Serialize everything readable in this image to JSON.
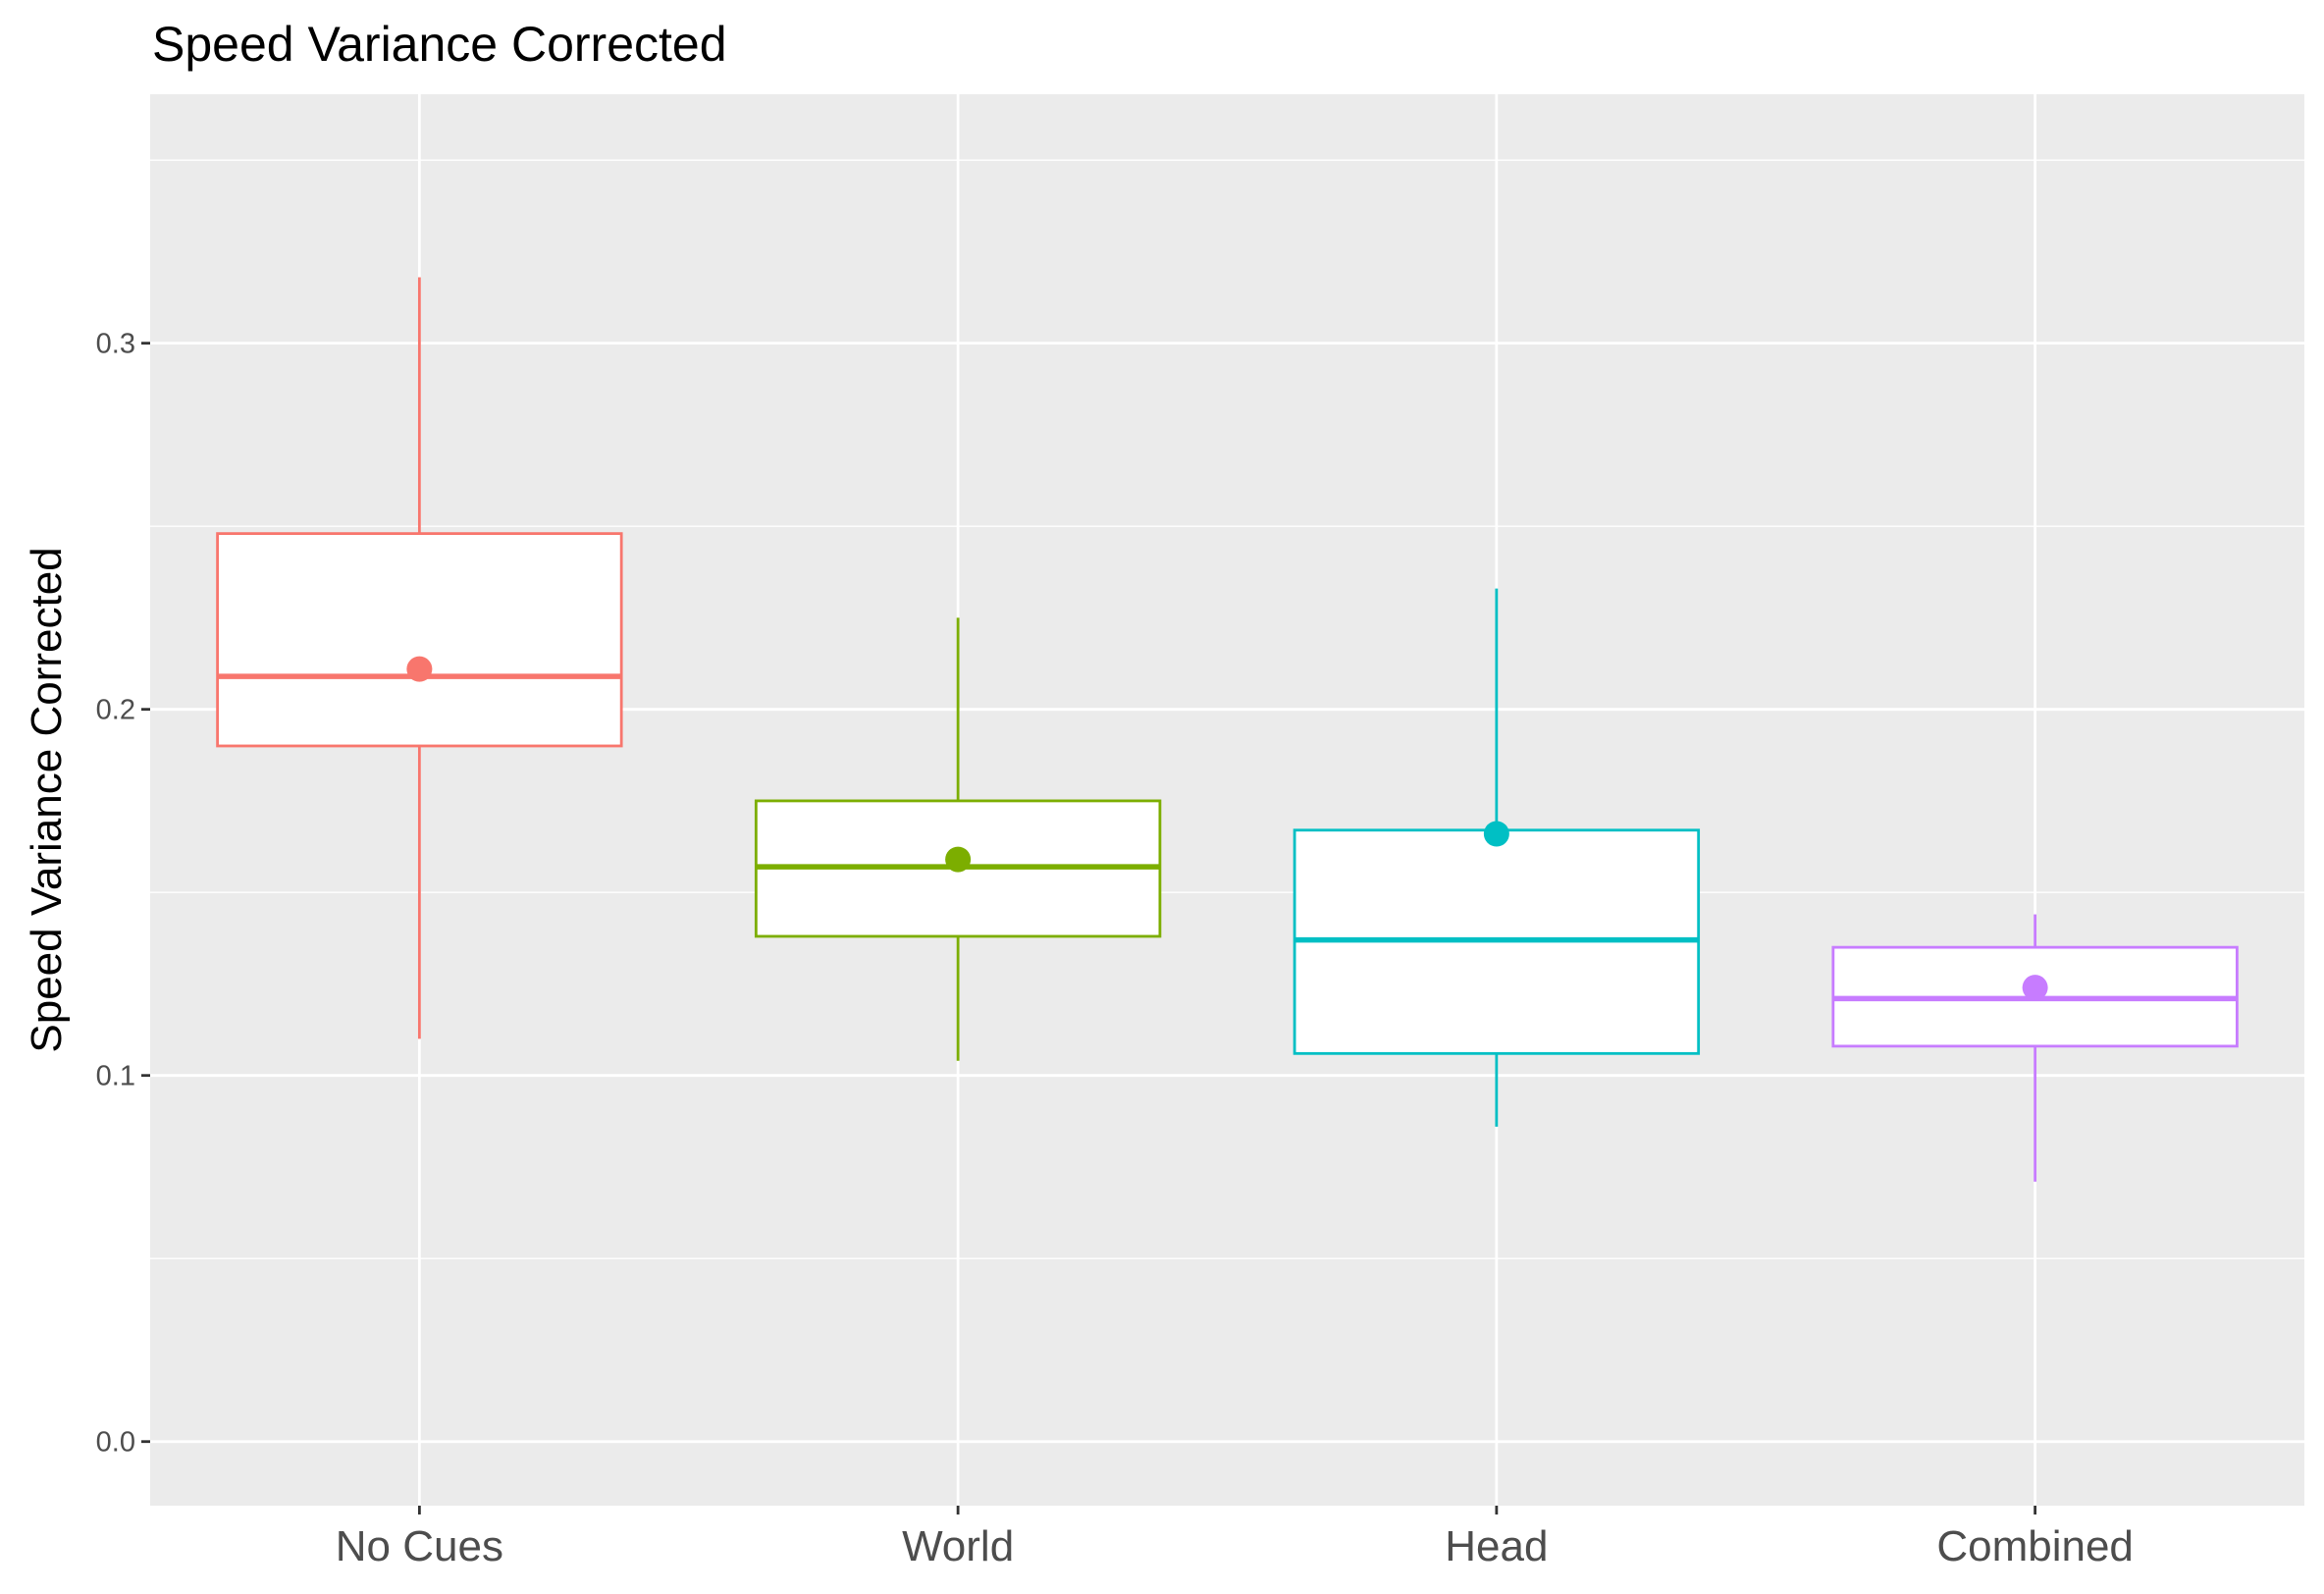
{
  "chart_data": {
    "type": "box",
    "title": "Speed Variance Corrected",
    "xlabel": "",
    "ylabel": "Speed Variance Corrected",
    "ylim": [
      -0.0175,
      0.368
    ],
    "yticks": [
      "0.0",
      "0.1",
      "0.2",
      "0.3"
    ],
    "grid": true,
    "legend": "none",
    "categories": [
      "No Cues",
      "World",
      "Head",
      "Combined"
    ],
    "series": [
      {
        "category": "No Cues",
        "color": "#F8766D",
        "whisker_low": 0.11,
        "q1": 0.19,
        "median": 0.209,
        "q3": 0.248,
        "whisker_high": 0.318,
        "mean": 0.211
      },
      {
        "category": "World",
        "color": "#7CAE00",
        "whisker_low": 0.104,
        "q1": 0.138,
        "median": 0.157,
        "q3": 0.175,
        "whisker_high": 0.225,
        "mean": 0.159
      },
      {
        "category": "Head",
        "color": "#00BFC4",
        "whisker_low": 0.086,
        "q1": 0.106,
        "median": 0.137,
        "q3": 0.167,
        "whisker_high": 0.233,
        "mean": 0.166
      },
      {
        "category": "Combined",
        "color": "#C77CFF",
        "whisker_low": 0.071,
        "q1": 0.108,
        "median": 0.121,
        "q3": 0.135,
        "whisker_high": 0.144,
        "mean": 0.124
      }
    ],
    "panel_background": "#EBEBEB",
    "grid_color": "#FFFFFF"
  }
}
